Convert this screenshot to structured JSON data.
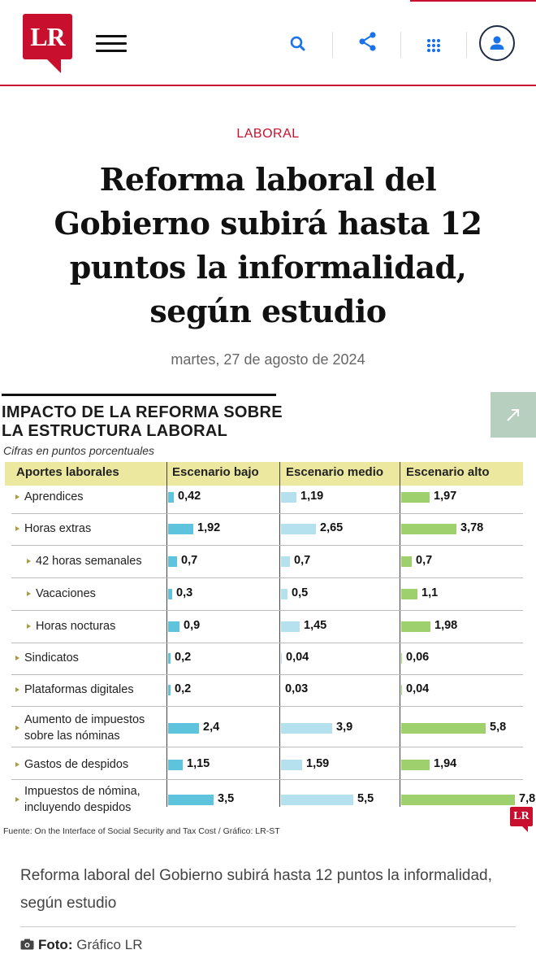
{
  "header": {
    "logo_text": "LR",
    "brand_color": "#c8102e",
    "icons": [
      "menu-icon",
      "search-icon",
      "share-icon",
      "apps-grid-icon",
      "user-icon"
    ]
  },
  "article": {
    "category": "LABORAL",
    "title": "Reforma laboral del Gobierno subirá hasta 12 puntos la informalidad, según estudio",
    "date": "martes, 27 de agosto de 2024",
    "caption": "Reforma laboral del Gobierno subirá hasta 12 puntos la informalidad, según estudio",
    "credit_label": "Foto:",
    "credit_value": "Gráfico LR"
  },
  "chart_data": {
    "type": "table",
    "title": "IMPACTO DE LA REFORMA SOBRE LA ESTRUCTURA LABORAL",
    "subtitle": "Cifras en puntos porcentuales",
    "row_header": "Aportes laborales",
    "columns": [
      "Escenario bajo",
      "Escenario medio",
      "Escenario alto"
    ],
    "colors": [
      "#5ec4dd",
      "#b5e1ef",
      "#9ed06e"
    ],
    "rows": [
      {
        "label": "Aprendices",
        "values": [
          "0,42",
          "1,19",
          "1,97"
        ]
      },
      {
        "label": "Horas extras",
        "values": [
          "1,92",
          "2,65",
          "3,78"
        ]
      },
      {
        "label": "42 horas semanales",
        "values": [
          "0,7",
          "0,7",
          "0,7"
        ]
      },
      {
        "label": "Vacaciones",
        "values": [
          "0,3",
          "0,5",
          "1,1"
        ]
      },
      {
        "label": "Horas nocturas",
        "values": [
          "0,9",
          "1,45",
          "1,98"
        ]
      },
      {
        "label": "Sindicatos",
        "values": [
          "0,2",
          "0,04",
          "0,06"
        ]
      },
      {
        "label": "Plataformas digitales",
        "values": [
          "0,2",
          "0,03",
          "0,04"
        ]
      },
      {
        "label": "Aumento de impuestos sobre las nóminas",
        "values": [
          "2,4",
          "3,9",
          "5,8"
        ]
      },
      {
        "label": "Gastos de despidos",
        "values": [
          "1,15",
          "1,59",
          "1,94"
        ]
      },
      {
        "label": "Impuestos de nómina, incluyendo despidos",
        "values": [
          "3,5",
          "5,5",
          "7,8"
        ]
      }
    ],
    "source": "Fuente: On the Interface of Social Security and Tax Cost / Gráfico: LR-ST",
    "logo_text": "LR"
  }
}
